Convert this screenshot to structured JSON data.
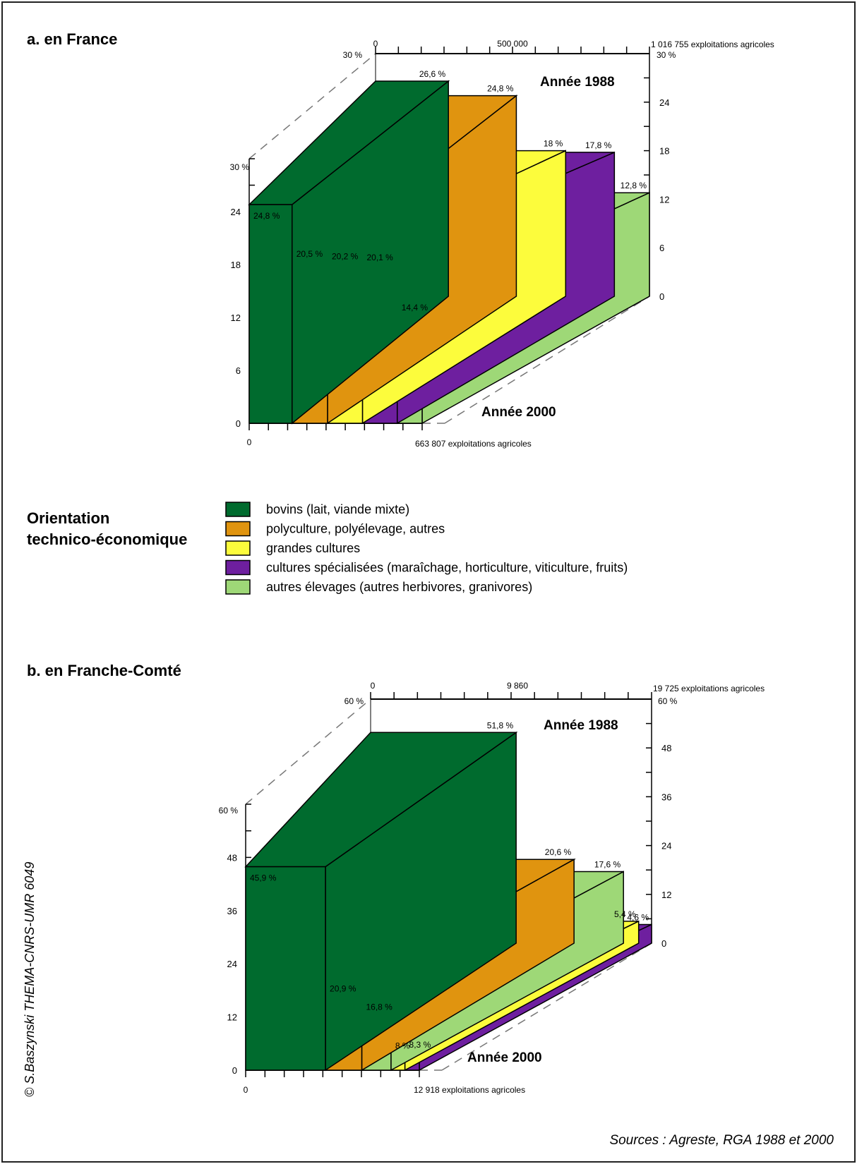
{
  "colors": {
    "bovins": "#006b2e",
    "polyculture": "#e0940f",
    "grandes": "#fcfc3c",
    "specialisees": "#6e1f9f",
    "elevages": "#9ed877"
  },
  "legend": {
    "title_line1": "Orientation",
    "title_line2": "technico-économique",
    "items": [
      {
        "key": "bovins",
        "label": "bovins (lait, viande mixte)"
      },
      {
        "key": "polyculture",
        "label": "polyculture, polyélevage, autres"
      },
      {
        "key": "grandes",
        "label": "grandes cultures"
      },
      {
        "key": "specialisees",
        "label": "cultures spécialisées (maraîchage, horticulture, viticulture, fruits)"
      },
      {
        "key": "elevages",
        "label": "autres élevages (autres herbivores, granivores)"
      }
    ]
  },
  "copyright": "© S.Baszynski THEMA-CNRS-UMR 6049",
  "sources": "Sources : Agreste, RGA 1988 et 2000",
  "chart_data": [
    {
      "type": "bar",
      "title": "a. en France",
      "year_back_label": "Année 1988",
      "year_front_label": "Année 2000",
      "ylim": [
        0,
        30
      ],
      "ymax_label": "30 %",
      "front_yticks": [
        "0",
        "6",
        "12",
        "18",
        "24"
      ],
      "back_yticks": [
        "0",
        "6",
        "12",
        "18",
        "24"
      ],
      "back_total_label": "1 016 755 exploitations agricoles",
      "back_mid_label": "500 000",
      "back_zero_label": "0",
      "front_total_label": "663 807 exploitations agricoles",
      "front_zero_label": "0",
      "series": [
        {
          "key": "bovins",
          "v2000": 24.8,
          "v1988": 26.6,
          "l2000": "24,8 %",
          "l1988": "26,6 %"
        },
        {
          "key": "polyculture",
          "v2000": 20.5,
          "v1988": 24.8,
          "l2000": "20,5 %",
          "l1988": "24,8 %"
        },
        {
          "key": "grandes",
          "v2000": 20.2,
          "v1988": 18,
          "l2000": "20,2 %",
          "l1988": "18 %"
        },
        {
          "key": "specialisees",
          "v2000": 20.1,
          "v1988": 17.8,
          "l2000": "20,1 %",
          "l1988": "17,8 %"
        },
        {
          "key": "elevages",
          "v2000": 14.4,
          "v1988": 12.8,
          "l2000": "14,4 %",
          "l1988": "12,8 %"
        }
      ]
    },
    {
      "type": "bar",
      "title": "b. en Franche-Comté",
      "year_back_label": "Année 1988",
      "year_front_label": "Année 2000",
      "ylim": [
        0,
        60
      ],
      "ymax_label": "60 %",
      "front_yticks": [
        "0",
        "12",
        "24",
        "36",
        "48"
      ],
      "back_yticks": [
        "0",
        "12",
        "24",
        "36",
        "48"
      ],
      "back_total_label": "19 725 exploitations agricoles",
      "back_mid_label": "9 860",
      "back_zero_label": "0",
      "front_total_label": "12 918 exploitations agricoles",
      "front_zero_label": "0",
      "series": [
        {
          "key": "bovins",
          "v2000": 45.9,
          "v1988": 51.8,
          "l2000": "45,9 %",
          "l1988": "51,8 %"
        },
        {
          "key": "polyculture",
          "v2000": 20.9,
          "v1988": 20.6,
          "l2000": "20,9 %",
          "l1988": "20,6 %"
        },
        {
          "key": "elevages",
          "v2000": 16.8,
          "v1988": 17.6,
          "l2000": "16,8 %",
          "l1988": "17,6 %"
        },
        {
          "key": "grandes",
          "v2000": 8,
          "v1988": 5.4,
          "l2000": "8 %",
          "l1988": "5,4 %"
        },
        {
          "key": "specialisees",
          "v2000": 8.3,
          "v1988": 4.6,
          "l2000": "8,3 %",
          "l1988": "4,6 %"
        }
      ]
    }
  ]
}
